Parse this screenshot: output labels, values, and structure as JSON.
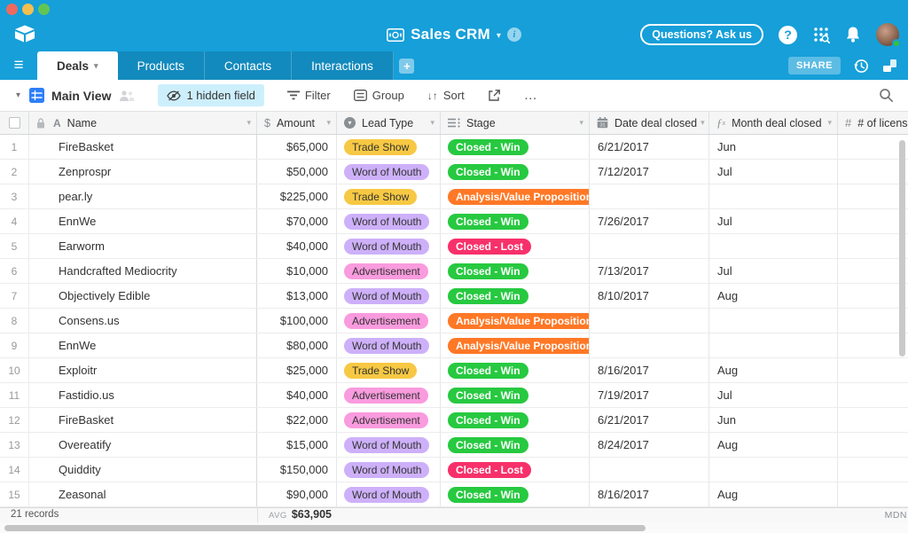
{
  "window": {
    "controls": [
      "close",
      "minimize",
      "zoom"
    ]
  },
  "header": {
    "base_title": "Sales CRM",
    "ask_button": "Questions? Ask us"
  },
  "tabs": {
    "items": [
      {
        "label": "Deals",
        "active": true
      },
      {
        "label": "Products",
        "active": false
      },
      {
        "label": "Contacts",
        "active": false
      },
      {
        "label": "Interactions",
        "active": false
      }
    ],
    "share_label": "SHARE"
  },
  "toolbar": {
    "view_name": "Main View",
    "hidden_field_label": "1 hidden field",
    "filter_label": "Filter",
    "group_label": "Group",
    "sort_label": "Sort",
    "more_label": "…"
  },
  "icons": {
    "caret_down": "▾",
    "hamburger": "≡",
    "plus": "+",
    "question": "?",
    "info": "i",
    "letter_a": "A",
    "dollar": "$",
    "hash": "#",
    "sort_arrows": "↓↑"
  },
  "table": {
    "columns": [
      {
        "label": "Name"
      },
      {
        "label": "Amount"
      },
      {
        "label": "Lead Type"
      },
      {
        "label": "Stage"
      },
      {
        "label": "Date deal closed"
      },
      {
        "label": "Month deal closed"
      },
      {
        "label": "# of licenses"
      }
    ],
    "rows": [
      {
        "num": "1",
        "name": "FireBasket",
        "amount": "$65,000",
        "lead": "Trade Show",
        "stage": "Closed - Win",
        "date": "6/21/2017",
        "month": "Jun"
      },
      {
        "num": "2",
        "name": "Zenprospr",
        "amount": "$50,000",
        "lead": "Word of Mouth",
        "stage": "Closed - Win",
        "date": "7/12/2017",
        "month": "Jul"
      },
      {
        "num": "3",
        "name": "pear.ly",
        "amount": "$225,000",
        "lead": "Trade Show",
        "stage": "Analysis/Value Proposition",
        "date": "",
        "month": ""
      },
      {
        "num": "4",
        "name": "EnnWe",
        "amount": "$70,000",
        "lead": "Word of Mouth",
        "stage": "Closed - Win",
        "date": "7/26/2017",
        "month": "Jul"
      },
      {
        "num": "5",
        "name": "Earworm",
        "amount": "$40,000",
        "lead": "Word of Mouth",
        "stage": "Closed - Lost",
        "date": "",
        "month": ""
      },
      {
        "num": "6",
        "name": "Handcrafted Mediocrity",
        "amount": "$10,000",
        "lead": "Advertisement",
        "stage": "Closed - Win",
        "date": "7/13/2017",
        "month": "Jul"
      },
      {
        "num": "7",
        "name": "Objectively Edible",
        "amount": "$13,000",
        "lead": "Word of Mouth",
        "stage": "Closed - Win",
        "date": "8/10/2017",
        "month": "Aug"
      },
      {
        "num": "8",
        "name": "Consens.us",
        "amount": "$100,000",
        "lead": "Advertisement",
        "stage": "Analysis/Value Proposition",
        "date": "",
        "month": ""
      },
      {
        "num": "9",
        "name": "EnnWe",
        "amount": "$80,000",
        "lead": "Word of Mouth",
        "stage": "Analysis/Value Proposition",
        "date": "",
        "month": ""
      },
      {
        "num": "10",
        "name": "Exploitr",
        "amount": "$25,000",
        "lead": "Trade Show",
        "stage": "Closed - Win",
        "date": "8/16/2017",
        "month": "Aug"
      },
      {
        "num": "11",
        "name": "Fastidio.us",
        "amount": "$40,000",
        "lead": "Advertisement",
        "stage": "Closed - Win",
        "date": "7/19/2017",
        "month": "Jul"
      },
      {
        "num": "12",
        "name": "FireBasket",
        "amount": "$22,000",
        "lead": "Advertisement",
        "stage": "Closed - Win",
        "date": "6/21/2017",
        "month": "Jun"
      },
      {
        "num": "13",
        "name": "Overeatify",
        "amount": "$15,000",
        "lead": "Word of Mouth",
        "stage": "Closed - Win",
        "date": "8/24/2017",
        "month": "Aug"
      },
      {
        "num": "14",
        "name": "Quiddity",
        "amount": "$150,000",
        "lead": "Word of Mouth",
        "stage": "Closed - Lost",
        "date": "",
        "month": ""
      },
      {
        "num": "15",
        "name": "Zeasonal",
        "amount": "$90,000",
        "lead": "Word of Mouth",
        "stage": "Closed - Win",
        "date": "8/16/2017",
        "month": "Aug"
      }
    ]
  },
  "badge_colors": {
    "Trade Show": {
      "bg": "#f7c843",
      "fg": "#333333",
      "bold": false
    },
    "Word of Mouth": {
      "bg": "#cdb0f9",
      "fg": "#333333",
      "bold": false
    },
    "Advertisement": {
      "bg": "#f99bde",
      "fg": "#333333",
      "bold": false
    },
    "Closed - Win": {
      "bg": "#27c940",
      "fg": "#ffffff",
      "bold": true
    },
    "Closed - Lost": {
      "bg": "#f8306a",
      "fg": "#ffffff",
      "bold": true
    },
    "Analysis/Value Proposition": {
      "bg": "#ff7826",
      "fg": "#ffffff",
      "bold": true
    }
  },
  "footer": {
    "records": "21 records",
    "avg_label": "AVG",
    "avg_value": "$63,905",
    "mdn_label": "MDN"
  },
  "colors": {
    "accent_blue": "#169fd9",
    "view_icon_blue": "#2d7ff9",
    "hidden_field_pill": "#cdeffc"
  }
}
